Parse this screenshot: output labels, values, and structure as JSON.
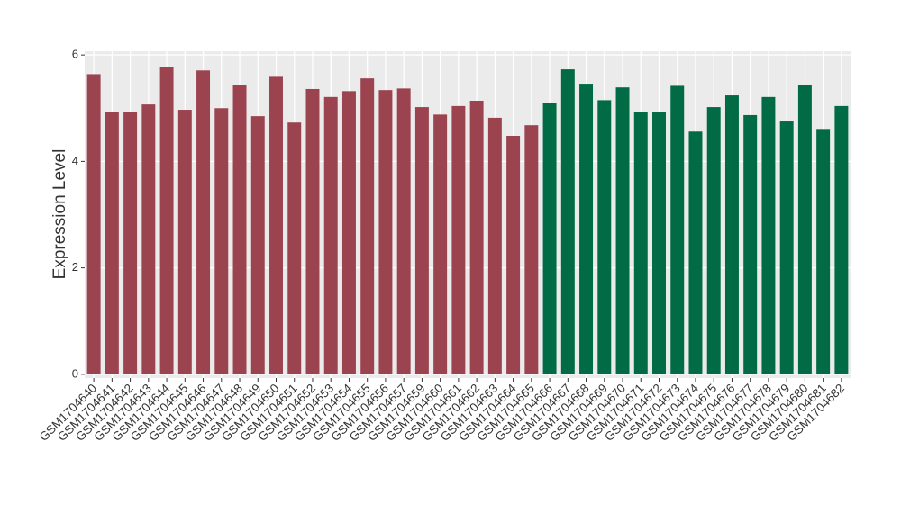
{
  "chart_data": {
    "type": "bar",
    "y_label": "Expression Level",
    "categories": [
      "GSM1704640",
      "GSM1704641",
      "GSM1704642",
      "GSM1704643",
      "GSM1704644",
      "GSM1704645",
      "GSM1704646",
      "GSM1704647",
      "GSM1704648",
      "GSM1704649",
      "GSM1704650",
      "GSM1704651",
      "GSM1704652",
      "GSM1704653",
      "GSM1704654",
      "GSM1704655",
      "GSM1704656",
      "GSM1704657",
      "GSM1704659",
      "GSM1704660",
      "GSM1704661",
      "GSM1704662",
      "GSM1704663",
      "GSM1704664",
      "GSM1704665",
      "GSM1704666",
      "GSM1704667",
      "GSM1704668",
      "GSM1704669",
      "GSM1704670",
      "GSM1704671",
      "GSM1704672",
      "GSM1704673",
      "GSM1704674",
      "GSM1704675",
      "GSM1704676",
      "GSM1704677",
      "GSM1704678",
      "GSM1704679",
      "GSM1704680",
      "GSM1704681",
      "GSM1704682"
    ],
    "values": [
      5.64,
      4.92,
      4.92,
      5.07,
      5.78,
      4.97,
      5.71,
      5.0,
      5.44,
      4.85,
      5.59,
      4.73,
      5.36,
      5.21,
      5.32,
      5.56,
      5.34,
      5.37,
      5.02,
      4.88,
      5.04,
      5.14,
      4.82,
      4.48,
      4.68,
      5.1,
      5.73,
      5.46,
      5.15,
      5.39,
      4.92,
      4.92,
      5.42,
      4.56,
      5.02,
      5.24,
      4.87,
      5.21,
      4.75,
      5.44,
      4.61,
      5.04
    ],
    "colors": [
      "#9b4450",
      "#9b4450",
      "#9b4450",
      "#9b4450",
      "#9b4450",
      "#9b4450",
      "#9b4450",
      "#9b4450",
      "#9b4450",
      "#9b4450",
      "#9b4450",
      "#9b4450",
      "#9b4450",
      "#9b4450",
      "#9b4450",
      "#9b4450",
      "#9b4450",
      "#9b4450",
      "#9b4450",
      "#9b4450",
      "#9b4450",
      "#9b4450",
      "#9b4450",
      "#9b4450",
      "#9b4450",
      "#006b45",
      "#006b45",
      "#006b45",
      "#006b45",
      "#006b45",
      "#006b45",
      "#006b45",
      "#006b45",
      "#006b45",
      "#006b45",
      "#006b45",
      "#006b45",
      "#006b45",
      "#006b45",
      "#006b45",
      "#006b45",
      "#006b45"
    ],
    "ylim": [
      -0.07,
      6.07
    ],
    "yticks": [
      0,
      2,
      4,
      6
    ],
    "grid": true
  }
}
